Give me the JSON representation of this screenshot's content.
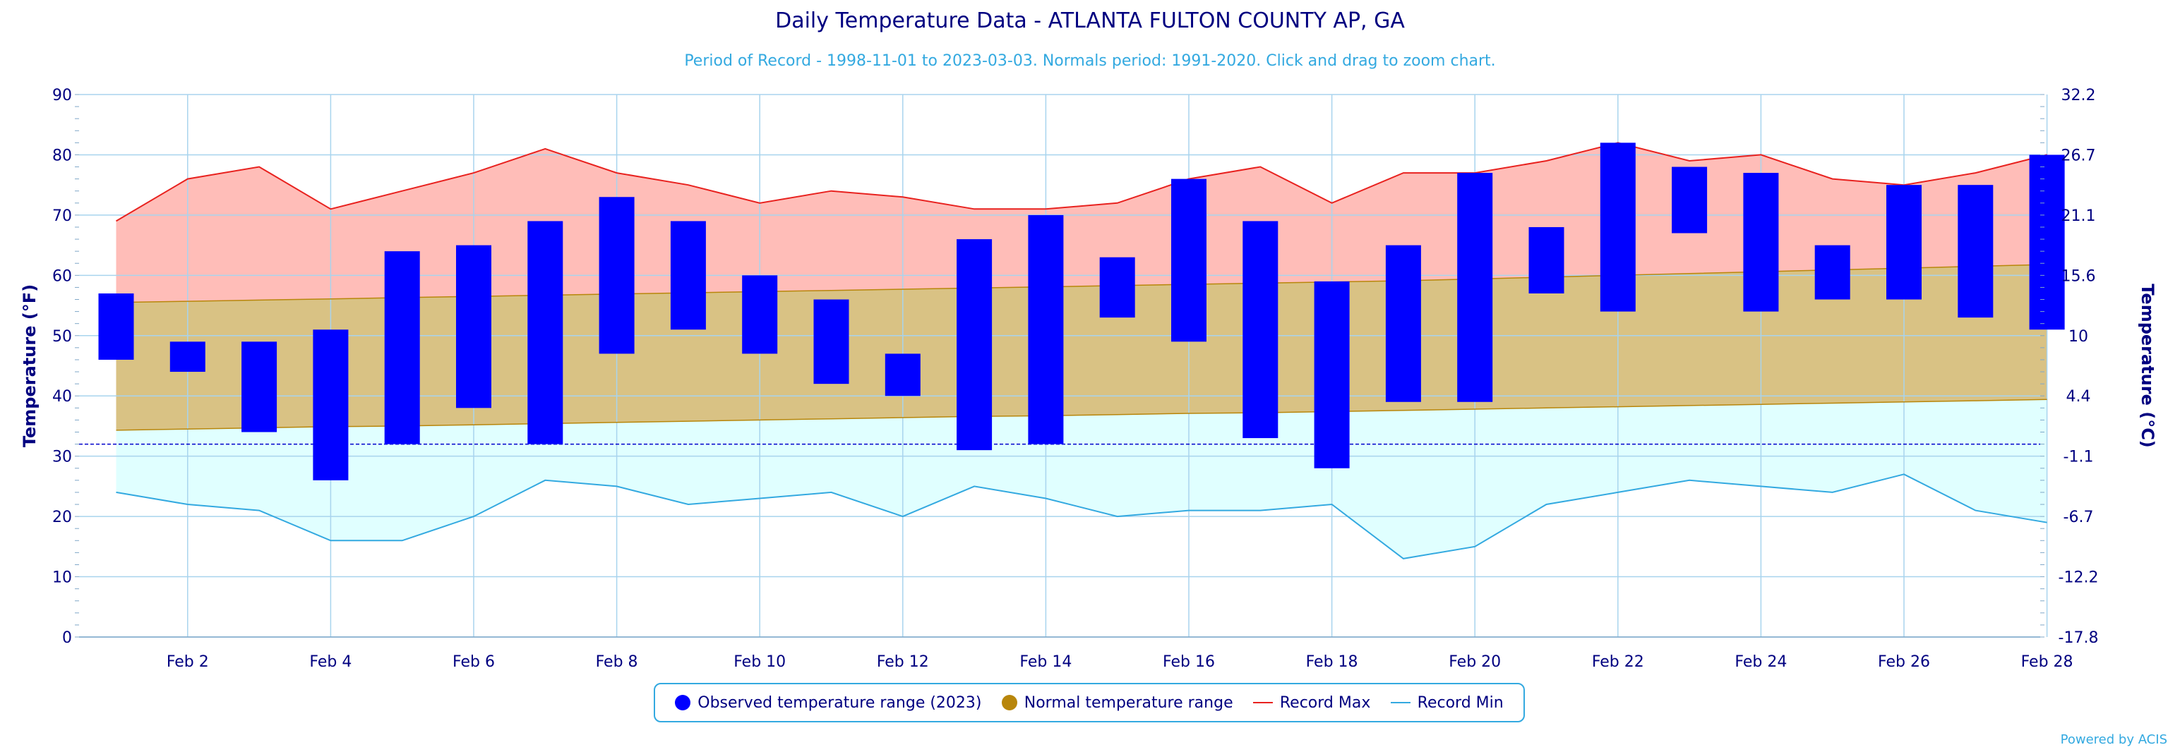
{
  "title": "Daily Temperature Data - ATLANTA FULTON COUNTY AP, GA",
  "subtitle": "Period of Record - 1998-11-01 to 2023-03-03. Normals period: 1991-2020. Click and drag to zoom chart.",
  "credit": "Powered by ACIS",
  "colors": {
    "observed": "#0000ff",
    "normal_fill": "#d9c284",
    "normal_edge": "#b8860b",
    "normal_dot": "#b8860b",
    "record_max_line": "#e8221f",
    "record_max_fill": "#ffbdb8",
    "record_min_line": "#33a9e0",
    "record_min_fill": "#e0ffff",
    "grid": "#a8d4ee",
    "freezing": "#0000cc",
    "axis_text": "#000080"
  },
  "chart_data": {
    "type": "bar",
    "title": "Daily Temperature Data - ATLANTA FULTON COUNTY AP, GA",
    "subtitle": "Period of Record - 1998-11-01 to 2023-03-03. Normals period: 1991-2020. Click and drag to zoom chart.",
    "ylabel_left": "Temperature (°F)",
    "ylabel_right": "Temperature (°C)",
    "ylim": [
      0,
      90
    ],
    "y_ticks_left": [
      "0",
      "10",
      "20",
      "30",
      "40",
      "50",
      "60",
      "70",
      "80",
      "90"
    ],
    "y_ticks_right": [
      "-17.8",
      "-12.2",
      "-6.7",
      "-1.1",
      "4.4",
      "10",
      "15.6",
      "21.1",
      "26.7",
      "32.2"
    ],
    "x_ticks": [
      "Feb 2",
      "Feb 4",
      "Feb 6",
      "Feb 8",
      "Feb 10",
      "Feb 12",
      "Feb 14",
      "Feb 16",
      "Feb 18",
      "Feb 20",
      "Feb 22",
      "Feb 24",
      "Feb 26",
      "Feb 28"
    ],
    "freezing_line": 32,
    "grid": true,
    "legend_position": "bottom-center",
    "days": [
      1,
      2,
      3,
      4,
      5,
      6,
      7,
      8,
      9,
      10,
      11,
      12,
      13,
      14,
      15,
      16,
      17,
      18,
      19,
      20,
      21,
      22,
      23,
      24,
      25,
      26,
      27,
      28
    ],
    "series": [
      {
        "name": "Observed temperature range (2023)",
        "low": [
          46,
          44,
          34,
          26,
          32,
          38,
          32,
          47,
          51,
          47,
          42,
          40,
          31,
          32,
          53,
          49,
          33,
          28,
          39,
          39,
          57,
          54,
          67,
          54,
          56,
          56,
          53,
          51
        ],
        "high": [
          57,
          49,
          49,
          51,
          64,
          65,
          69,
          73,
          69,
          60,
          56,
          47,
          66,
          70,
          63,
          76,
          69,
          59,
          65,
          77,
          68,
          82,
          78,
          77,
          65,
          75,
          75,
          80
        ]
      },
      {
        "name": "Normal temperature range",
        "low": [
          34.3,
          34.5,
          34.7,
          34.9,
          35.0,
          35.2,
          35.4,
          35.6,
          35.8,
          36.0,
          36.2,
          36.4,
          36.6,
          36.7,
          36.9,
          37.1,
          37.2,
          37.4,
          37.6,
          37.8,
          38.0,
          38.2,
          38.4,
          38.6,
          38.8,
          39.0,
          39.2,
          39.4
        ],
        "high": [
          55.5,
          55.7,
          55.9,
          56.1,
          56.3,
          56.5,
          56.7,
          56.9,
          57.1,
          57.3,
          57.5,
          57.7,
          57.9,
          58.1,
          58.3,
          58.5,
          58.7,
          58.9,
          59.1,
          59.4,
          59.7,
          60.0,
          60.3,
          60.6,
          60.9,
          61.2,
          61.5,
          61.8
        ]
      },
      {
        "name": "Record Max",
        "values": [
          69,
          76,
          78,
          71,
          74,
          77,
          81,
          77,
          75,
          72,
          74,
          73,
          71,
          71,
          72,
          76,
          78,
          72,
          77,
          77,
          79,
          82,
          79,
          80,
          76,
          75,
          77,
          80
        ]
      },
      {
        "name": "Record Min",
        "values": [
          24,
          22,
          21,
          16,
          16,
          20,
          26,
          25,
          22,
          23,
          24,
          20,
          25,
          23,
          20,
          21,
          21,
          22,
          13,
          15,
          22,
          24,
          26,
          25,
          24,
          27,
          21,
          19
        ]
      }
    ]
  },
  "legend": {
    "observed": "Observed temperature range (2023)",
    "normal": "Normal temperature range",
    "record_max": "Record Max",
    "record_min": "Record Min"
  }
}
